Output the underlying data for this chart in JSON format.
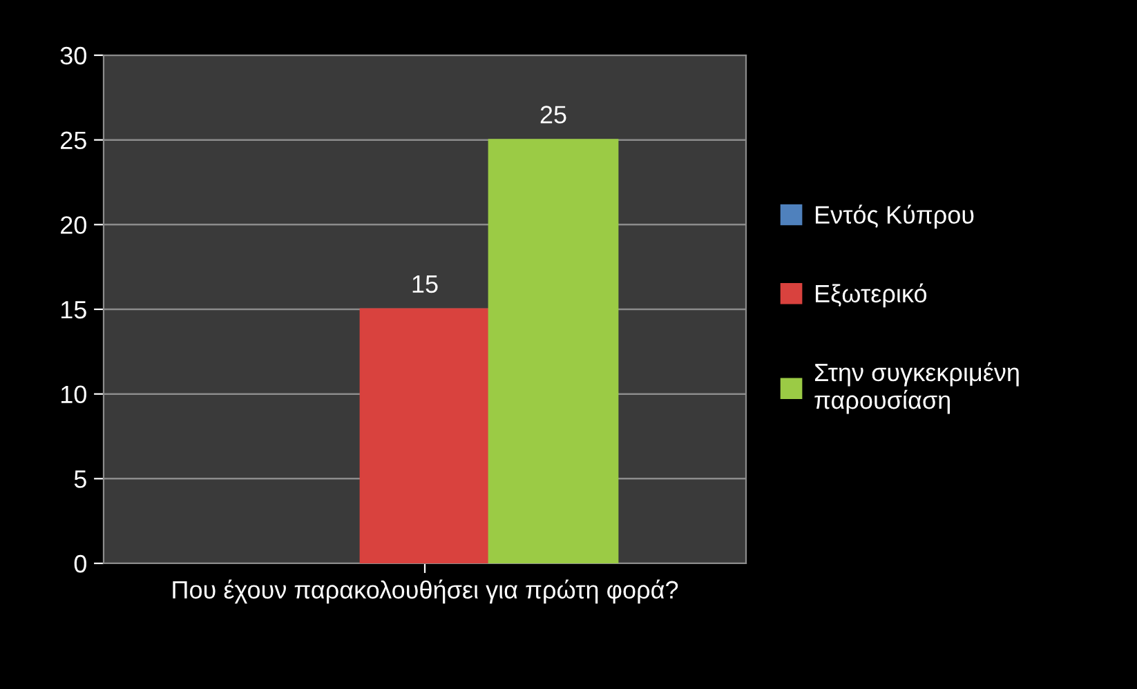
{
  "chart_data": {
    "type": "bar",
    "categories": [
      "Που έχουν παρακολουθήσει για πρώτη φορά?"
    ],
    "series": [
      {
        "name": "Εντός Κύπρου",
        "color": "#4f81bd",
        "values": [
          null
        ]
      },
      {
        "name": "Εξωτερικό",
        "color": "#d9423e",
        "values": [
          15
        ]
      },
      {
        "name": "Στην συγκεκριμένη παρουσίαση",
        "color": "#9bcb45",
        "values": [
          25
        ]
      }
    ],
    "ylim": [
      0,
      30
    ],
    "yticks": [
      0,
      5,
      10,
      15,
      20,
      25,
      30
    ],
    "grid": "y",
    "legend": "right",
    "data_labels": true
  }
}
